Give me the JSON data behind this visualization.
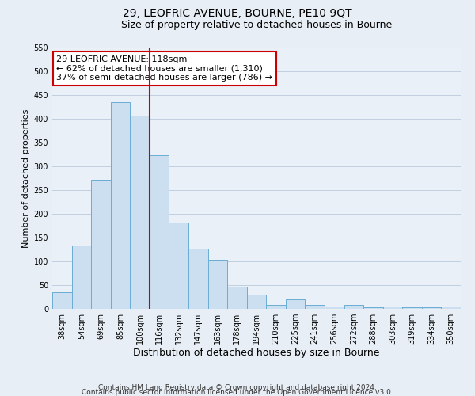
{
  "title": "29, LEOFRIC AVENUE, BOURNE, PE10 9QT",
  "subtitle": "Size of property relative to detached houses in Bourne",
  "xlabel": "Distribution of detached houses by size in Bourne",
  "ylabel": "Number of detached properties",
  "categories": [
    "38sqm",
    "54sqm",
    "69sqm",
    "85sqm",
    "100sqm",
    "116sqm",
    "132sqm",
    "147sqm",
    "163sqm",
    "178sqm",
    "194sqm",
    "210sqm",
    "225sqm",
    "241sqm",
    "256sqm",
    "272sqm",
    "288sqm",
    "303sqm",
    "319sqm",
    "334sqm",
    "350sqm"
  ],
  "values": [
    35,
    133,
    272,
    435,
    407,
    323,
    182,
    126,
    103,
    46,
    30,
    8,
    20,
    8,
    5,
    8,
    3,
    5,
    3,
    3,
    5
  ],
  "bar_color": "#ccdff0",
  "bar_edge_color": "#6aadd5",
  "vline_color": "#cc0000",
  "vline_x_index": 5,
  "annotation_text": "29 LEOFRIC AVENUE: 118sqm\n← 62% of detached houses are smaller (1,310)\n37% of semi-detached houses are larger (786) →",
  "annotation_box_facecolor": "#ffffff",
  "annotation_box_edgecolor": "#cc0000",
  "ylim": [
    0,
    550
  ],
  "yticks": [
    0,
    50,
    100,
    150,
    200,
    250,
    300,
    350,
    400,
    450,
    500,
    550
  ],
  "background_color": "#e8eef5",
  "plot_background_color": "#eaf0f8",
  "grid_color": "#c0cfe0",
  "title_fontsize": 10,
  "subtitle_fontsize": 9,
  "xlabel_fontsize": 9,
  "ylabel_fontsize": 8,
  "tick_fontsize": 7,
  "annotation_fontsize": 8,
  "footer_fontsize": 6.5,
  "footer_line1": "Contains HM Land Registry data © Crown copyright and database right 2024.",
  "footer_line2": "Contains public sector information licensed under the Open Government Licence v3.0."
}
